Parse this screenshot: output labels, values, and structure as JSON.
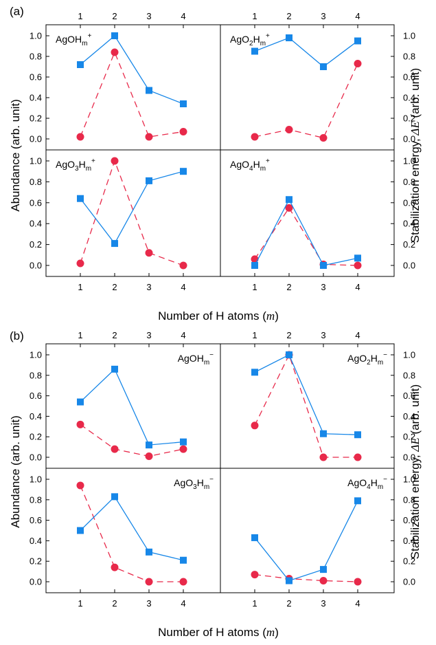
{
  "colors": {
    "abundance": "#e8294a",
    "stabilization": "#1787e8",
    "axis": "#000000"
  },
  "labels": {
    "panel_a": "(a)",
    "panel_b": "(b)",
    "xlabel_pre": "Number of H atoms (",
    "xlabel_var": "m",
    "xlabel_post": ")",
    "ylabel_left": "Abundance (arb. unit)",
    "ylabel_right_pre": "Stabilization energy, ",
    "ylabel_right_var": "ΔE",
    "ylabel_right_post": " (arb. unit)"
  },
  "chart_data": [
    {
      "type": "line",
      "panel": "a",
      "species_base": "AgOH",
      "species_sub": "m",
      "species_sup": "+",
      "x": [
        1,
        2,
        3,
        4
      ],
      "xticks": [
        "1",
        "2",
        "3",
        "4"
      ],
      "ylim": [
        0,
        1.0
      ],
      "yticks": [
        "0.0",
        "0.2",
        "0.4",
        "0.6",
        "0.8",
        "1.0"
      ],
      "series": [
        {
          "values": [
            0.02,
            0.84,
            0.02,
            0.07
          ],
          "axis": "left",
          "style": "dashed-circle"
        },
        {
          "values": [
            0.72,
            1.0,
            0.47,
            0.34
          ],
          "axis": "right",
          "style": "solid-square"
        }
      ]
    },
    {
      "type": "line",
      "panel": "a",
      "species_base": "AgO",
      "species_o_sub": "2",
      "species_mid": "H",
      "species_sub": "m",
      "species_sup": "+",
      "x": [
        1,
        2,
        3,
        4
      ],
      "xticks": [
        "1",
        "2",
        "3",
        "4"
      ],
      "ylim": [
        0,
        1.0
      ],
      "yticks": [
        "0.0",
        "0.2",
        "0.4",
        "0.6",
        "0.8",
        "1.0"
      ],
      "series": [
        {
          "values": [
            0.02,
            0.09,
            0.01,
            0.73
          ],
          "axis": "left",
          "style": "dashed-circle"
        },
        {
          "values": [
            0.85,
            0.98,
            0.7,
            0.95
          ],
          "axis": "right",
          "style": "solid-square"
        }
      ]
    },
    {
      "type": "line",
      "panel": "a",
      "species_base": "AgO",
      "species_o_sub": "3",
      "species_mid": "H",
      "species_sub": "m",
      "species_sup": "+",
      "x": [
        1,
        2,
        3,
        4
      ],
      "xticks": [
        "1",
        "2",
        "3",
        "4"
      ],
      "ylim": [
        0,
        1.0
      ],
      "yticks": [
        "0.0",
        "0.2",
        "0.4",
        "0.6",
        "0.8",
        "1.0"
      ],
      "series": [
        {
          "values": [
            0.02,
            1.0,
            0.12,
            0.0
          ],
          "axis": "left",
          "style": "dashed-circle"
        },
        {
          "values": [
            0.64,
            0.21,
            0.81,
            0.9
          ],
          "axis": "right",
          "style": "solid-square"
        }
      ]
    },
    {
      "type": "line",
      "panel": "a",
      "species_base": "AgO",
      "species_o_sub": "4",
      "species_mid": "H",
      "species_sub": "m",
      "species_sup": "+",
      "x": [
        1,
        2,
        3,
        4
      ],
      "xticks": [
        "1",
        "2",
        "3",
        "4"
      ],
      "ylim": [
        0,
        1.0
      ],
      "yticks": [
        "0.0",
        "0.2",
        "0.4",
        "0.6",
        "0.8",
        "1.0"
      ],
      "series": [
        {
          "values": [
            0.06,
            0.55,
            0.01,
            0.0
          ],
          "axis": "left",
          "style": "dashed-circle"
        },
        {
          "values": [
            0.0,
            0.63,
            0.0,
            0.07
          ],
          "axis": "right",
          "style": "solid-square"
        }
      ]
    },
    {
      "type": "line",
      "panel": "b",
      "species_base": "AgOH",
      "species_sub": "m",
      "species_sup": "−",
      "x": [
        1,
        2,
        3,
        4
      ],
      "xticks": [
        "1",
        "2",
        "3",
        "4"
      ],
      "ylim": [
        0,
        1.0
      ],
      "yticks": [
        "0.0",
        "0.2",
        "0.4",
        "0.6",
        "0.8",
        "1.0"
      ],
      "series": [
        {
          "values": [
            0.32,
            0.08,
            0.01,
            0.08
          ],
          "axis": "left",
          "style": "dashed-circle"
        },
        {
          "values": [
            0.54,
            0.86,
            0.12,
            0.15
          ],
          "axis": "right",
          "style": "solid-square"
        }
      ]
    },
    {
      "type": "line",
      "panel": "b",
      "species_base": "AgO",
      "species_o_sub": "2",
      "species_mid": "H",
      "species_sub": "m",
      "species_sup": "−",
      "x": [
        1,
        2,
        3,
        4
      ],
      "xticks": [
        "1",
        "2",
        "3",
        "4"
      ],
      "ylim": [
        0,
        1.0
      ],
      "yticks": [
        "0.0",
        "0.2",
        "0.4",
        "0.6",
        "0.8",
        "1.0"
      ],
      "series": [
        {
          "values": [
            0.31,
            1.0,
            0.0,
            0.0
          ],
          "axis": "left",
          "style": "dashed-circle"
        },
        {
          "values": [
            0.83,
            1.0,
            0.23,
            0.22
          ],
          "axis": "right",
          "style": "solid-square"
        }
      ]
    },
    {
      "type": "line",
      "panel": "b",
      "species_base": "AgO",
      "species_o_sub": "3",
      "species_mid": "H",
      "species_sub": "m",
      "species_sup": "−",
      "x": [
        1,
        2,
        3,
        4
      ],
      "xticks": [
        "1",
        "2",
        "3",
        "4"
      ],
      "ylim": [
        0,
        1.0
      ],
      "yticks": [
        "0.0",
        "0.2",
        "0.4",
        "0.6",
        "0.8",
        "1.0"
      ],
      "series": [
        {
          "values": [
            0.94,
            0.14,
            0.0,
            0.0
          ],
          "axis": "left",
          "style": "dashed-circle"
        },
        {
          "values": [
            0.5,
            0.83,
            0.29,
            0.21
          ],
          "axis": "right",
          "style": "solid-square"
        }
      ]
    },
    {
      "type": "line",
      "panel": "b",
      "species_base": "AgO",
      "species_o_sub": "4",
      "species_mid": "H",
      "species_sub": "m",
      "species_sup": "−",
      "x": [
        1,
        2,
        3,
        4
      ],
      "xticks": [
        "1",
        "2",
        "3",
        "4"
      ],
      "ylim": [
        0,
        1.0
      ],
      "yticks": [
        "0.0",
        "0.2",
        "0.4",
        "0.6",
        "0.8",
        "1.0"
      ],
      "series": [
        {
          "values": [
            0.07,
            0.03,
            0.01,
            0.0
          ],
          "axis": "left",
          "style": "dashed-circle"
        },
        {
          "values": [
            0.43,
            0.01,
            0.12,
            0.79
          ],
          "axis": "right",
          "style": "solid-square"
        }
      ]
    }
  ]
}
